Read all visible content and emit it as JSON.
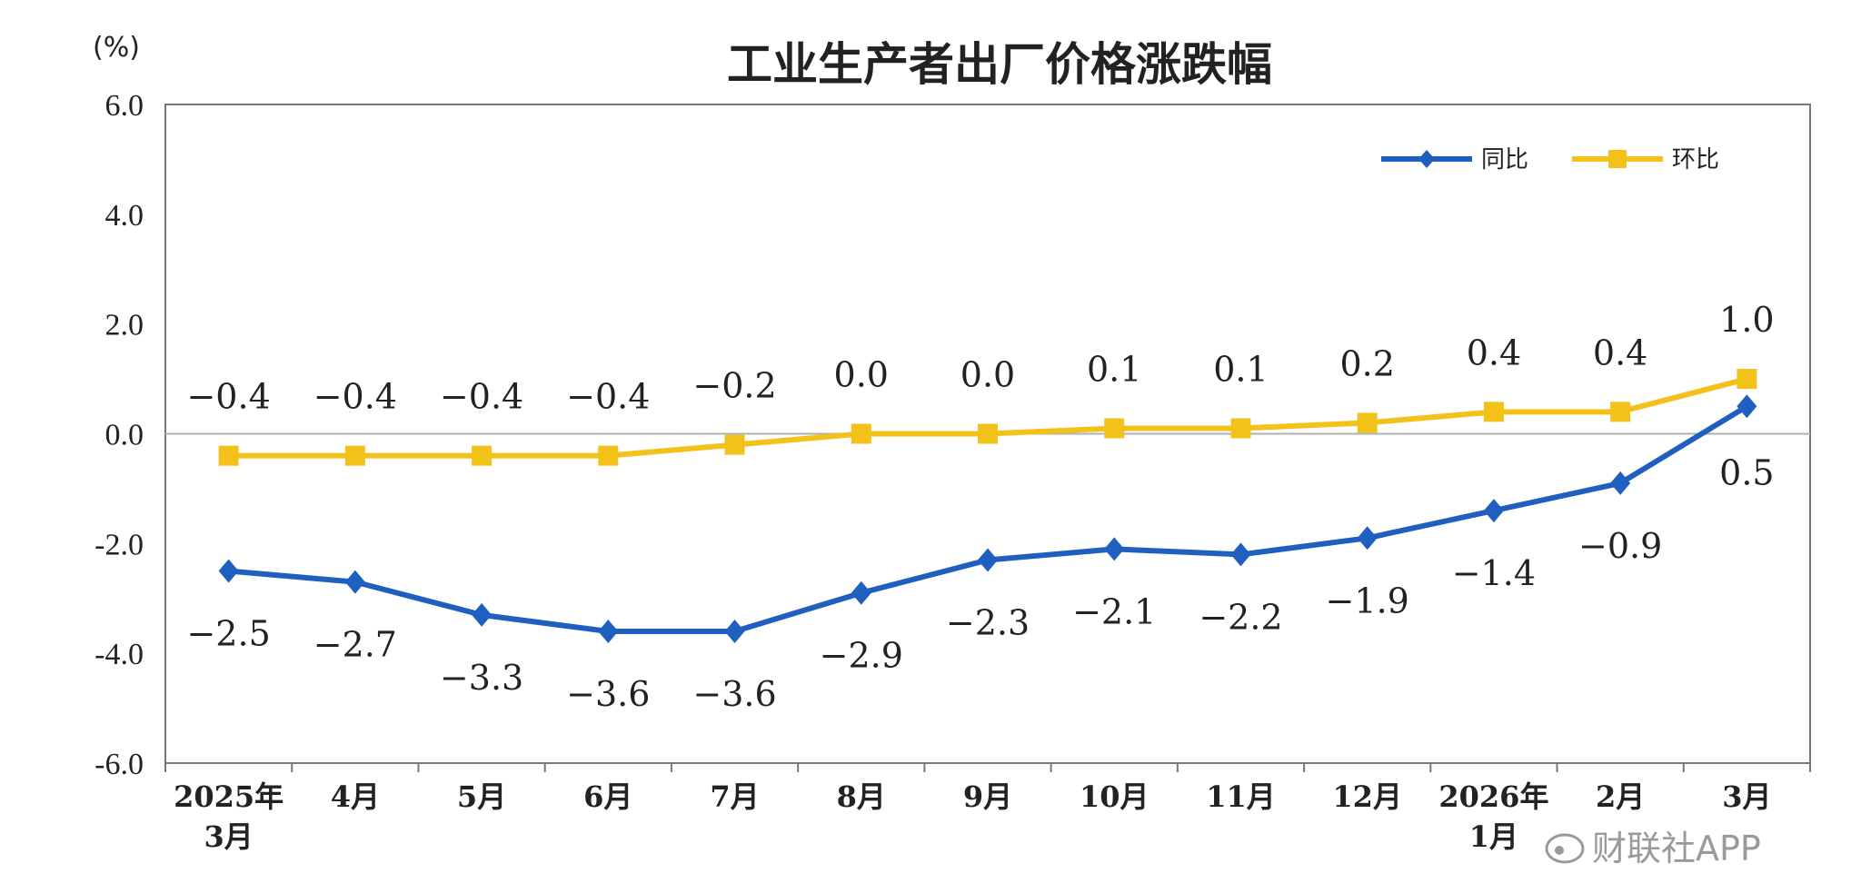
{
  "chart_data": {
    "type": "line",
    "title": "工业生产者出厂价格涨跌幅",
    "ylabel": "(%)",
    "xlabel": "",
    "ylim": [
      -6.0,
      6.0
    ],
    "yticks": [
      6.0,
      4.0,
      2.0,
      0.0,
      -2.0,
      -4.0,
      -6.0
    ],
    "ytick_labels": [
      "6.0",
      "4.0",
      "2.0",
      "0.0",
      "-2.0",
      "-4.0",
      "-6.0"
    ],
    "categories": [
      [
        "2025年",
        "3月"
      ],
      [
        "4月"
      ],
      [
        "5月"
      ],
      [
        "6月"
      ],
      [
        "7月"
      ],
      [
        "8月"
      ],
      [
        "9月"
      ],
      [
        "10月"
      ],
      [
        "11月"
      ],
      [
        "12月"
      ],
      [
        "2026年",
        "1月"
      ],
      [
        "2月"
      ],
      [
        "3月"
      ]
    ],
    "legend_position": "top-right",
    "series": [
      {
        "name": "同比",
        "color": "#1f5fbf",
        "marker": "diamond",
        "values": [
          -2.5,
          -2.7,
          -3.3,
          -3.6,
          -3.6,
          -2.9,
          -2.3,
          -2.1,
          -2.2,
          -1.9,
          -1.4,
          -0.9,
          0.5
        ],
        "labels": [
          "−2.5",
          "−2.7",
          "−3.3",
          "−3.6",
          "−3.6",
          "−2.9",
          "−2.3",
          "−2.1",
          "−2.2",
          "−1.9",
          "−1.4",
          "−0.9",
          "0.5"
        ]
      },
      {
        "name": "环比",
        "color": "#f2c21b",
        "marker": "square",
        "values": [
          -0.4,
          -0.4,
          -0.4,
          -0.4,
          -0.2,
          0.0,
          0.0,
          0.1,
          0.1,
          0.2,
          0.4,
          0.4,
          1.0
        ],
        "labels": [
          "−0.4",
          "−0.4",
          "−0.4",
          "−0.4",
          "−0.2",
          "0.0",
          "0.0",
          "0.1",
          "0.1",
          "0.2",
          "0.4",
          "0.4",
          "1.0"
        ]
      }
    ]
  },
  "watermark": {
    "text": "财联社APP"
  },
  "colors": {
    "axis": "#777777",
    "zero_line": "#b0b0b0",
    "watermark": "#9a9a9a"
  }
}
